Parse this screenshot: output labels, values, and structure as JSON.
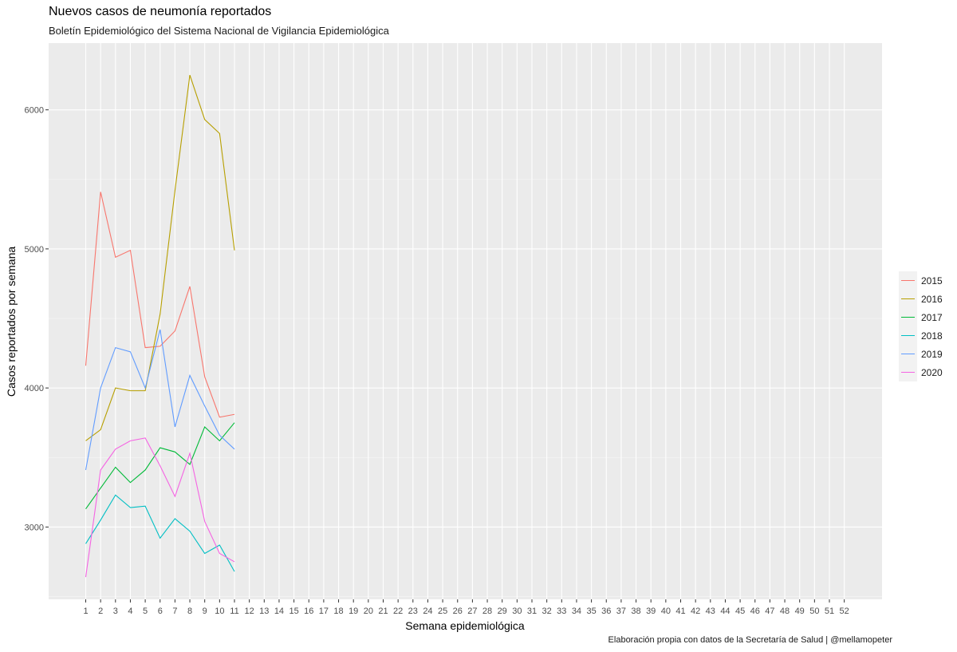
{
  "chart_data": {
    "type": "line",
    "title": "Nuevos casos de neumonía reportados",
    "subtitle": "Boletín Epidemiológico del Sistema Nacional de Vigilancia Epidemiológica",
    "xlabel": "Semana epidemiológica",
    "ylabel": "Casos reportados por semana",
    "caption": "Elaboración propia con datos de la Secretaría de Salud | @mellamopeter",
    "x_ticks": [
      "1",
      "2",
      "3",
      "4",
      "5",
      "6",
      "7",
      "8",
      "9",
      "10",
      "11",
      "12",
      "13",
      "14",
      "15",
      "16",
      "17",
      "18",
      "19",
      "20",
      "21",
      "22",
      "23",
      "24",
      "25",
      "26",
      "27",
      "28",
      "29",
      "30",
      "31",
      "32",
      "33",
      "34",
      "35",
      "36",
      "37",
      "38",
      "39",
      "40",
      "41",
      "42",
      "43",
      "44",
      "45",
      "46",
      "47",
      "48",
      "49",
      "50",
      "51",
      "52"
    ],
    "y_ticks": [
      3000,
      4000,
      5000,
      6000
    ],
    "ylim": [
      2480,
      6480
    ],
    "grid": true,
    "legend_position": "right",
    "series": [
      {
        "name": "2015",
        "color": "#F8766D",
        "x": [
          1,
          2,
          3,
          4,
          5,
          6,
          7,
          8,
          9,
          10,
          11
        ],
        "values": [
          4160,
          5410,
          4940,
          4990,
          4290,
          4300,
          4410,
          4730,
          4080,
          3790,
          3810
        ]
      },
      {
        "name": "2016",
        "color": "#B79F00",
        "x": [
          1,
          2,
          3,
          4,
          5,
          6,
          7,
          8,
          9,
          10,
          11
        ],
        "values": [
          3620,
          3700,
          4000,
          3980,
          3980,
          4530,
          5420,
          6250,
          5930,
          5830,
          4990
        ]
      },
      {
        "name": "2017",
        "color": "#00BA38",
        "x": [
          1,
          2,
          3,
          4,
          5,
          6,
          7,
          8,
          9,
          10,
          11
        ],
        "values": [
          3130,
          3280,
          3430,
          3320,
          3410,
          3570,
          3540,
          3450,
          3720,
          3620,
          3750
        ]
      },
      {
        "name": "2018",
        "color": "#00BFC4",
        "x": [
          1,
          2,
          3,
          4,
          5,
          6,
          7,
          8,
          9,
          10,
          11
        ],
        "values": [
          2880,
          3050,
          3230,
          3140,
          3150,
          2920,
          3060,
          2970,
          2810,
          2870,
          2680
        ]
      },
      {
        "name": "2019",
        "color": "#619CFF",
        "x": [
          1,
          2,
          3,
          4,
          5,
          6,
          7,
          8,
          9,
          10,
          11
        ],
        "values": [
          3410,
          4000,
          4290,
          4260,
          4000,
          4420,
          3720,
          4090,
          3870,
          3660,
          3560
        ]
      },
      {
        "name": "2020",
        "color": "#F564E3",
        "x": [
          1,
          2,
          3,
          4,
          5,
          6,
          7,
          8,
          9,
          10,
          11
        ],
        "values": [
          2640,
          3410,
          3560,
          3620,
          3640,
          3440,
          3220,
          3530,
          3040,
          2810,
          2750
        ]
      }
    ]
  }
}
